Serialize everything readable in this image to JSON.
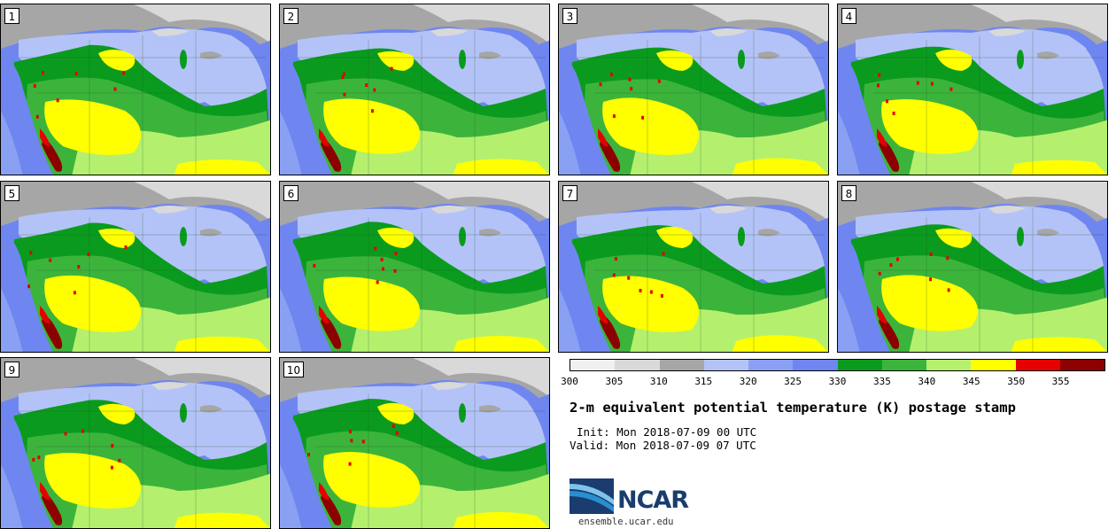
{
  "members": [
    "1",
    "2",
    "3",
    "4",
    "5",
    "6",
    "7",
    "8",
    "9",
    "10"
  ],
  "colorbar": {
    "colors": [
      "#f0f0f0",
      "#d9d9d9",
      "#a6a6a6",
      "#b4c3f7",
      "#8aa0f2",
      "#6f86f0",
      "#0a9b1e",
      "#3cb43c",
      "#b4f06e",
      "#ffff00",
      "#e60000",
      "#8c0000"
    ],
    "ticks": [
      "300",
      "305",
      "310",
      "315",
      "320",
      "325",
      "330",
      "335",
      "340",
      "345",
      "350",
      "355"
    ]
  },
  "palette": {
    "ocean": "#6f86f0",
    "ocean_light": "#8aa0f2",
    "canada": "#a6a6a6",
    "canada_light": "#d9d9d9",
    "north_blue": "#b4c3f7",
    "dark_green": "#0a9b1e",
    "green": "#3cb43c",
    "light_green": "#b4f06e",
    "yellow": "#ffff00",
    "red": "#e60000",
    "dark_red": "#8c0000",
    "lakes": "#d9d9d9"
  },
  "title": "2-m equivalent potential temperature (K) postage stamp",
  "init": "Init: Mon 2018-07-09 00 UTC",
  "valid": "Valid: Mon 2018-07-09 07 UTC",
  "logo": {
    "name": "NCAR",
    "url": "ensemble.ucar.edu",
    "colors": [
      "#1a3c6e",
      "#2a8fd0",
      "#7fc3ea"
    ]
  }
}
